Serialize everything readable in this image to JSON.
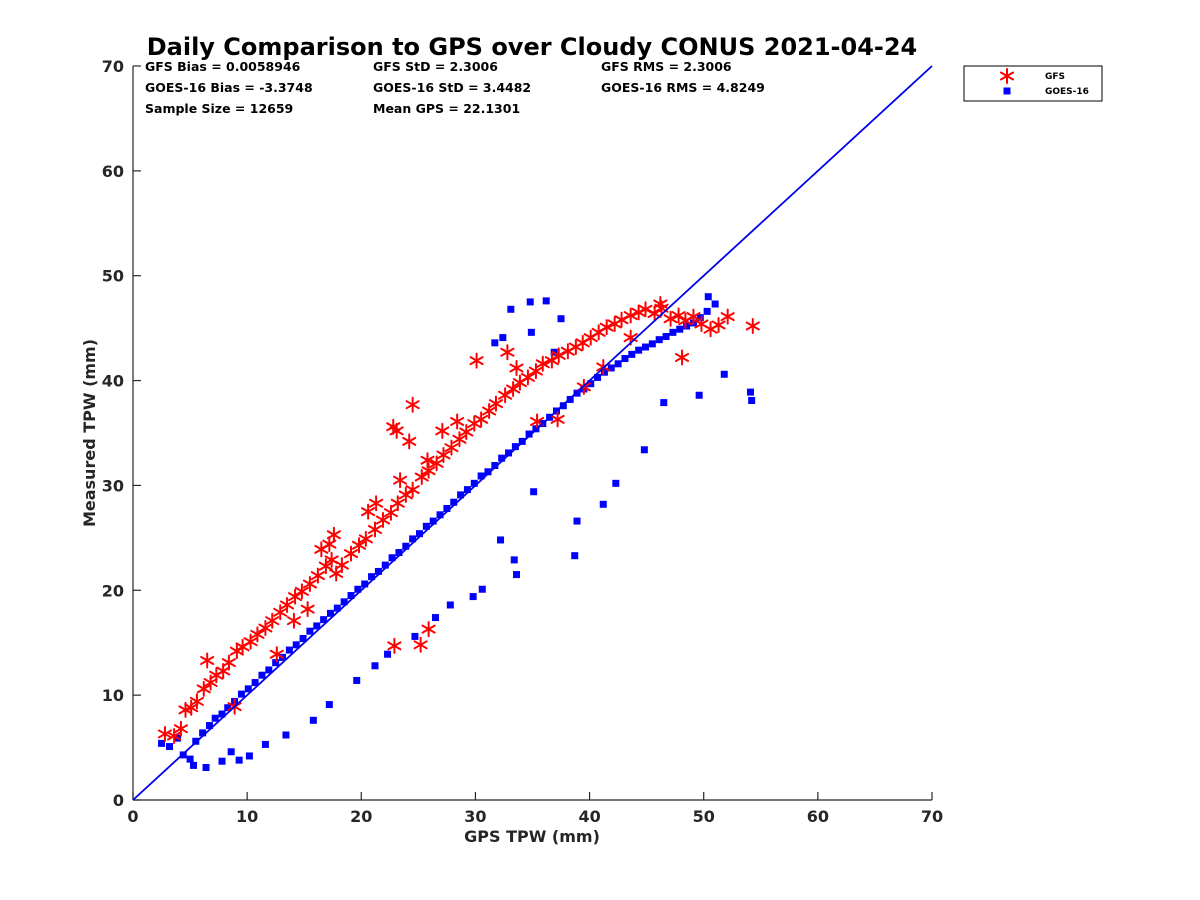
{
  "stats": {
    "gfs_bias": "GFS Bias = 0.0058946",
    "goes_bias": "GOES-16 Bias = -3.3748",
    "sample_size": "Sample Size = 12659",
    "gfs_std": "GFS StD = 2.3006",
    "goes_std": "GOES-16 StD = 3.4482",
    "mean_gps": "Mean GPS = 22.1301",
    "gfs_rms": "GFS RMS = 2.3006",
    "goes_rms": "GOES-16 RMS = 4.8249"
  },
  "chart_data": {
    "type": "scatter",
    "title": "Daily Comparison to GPS over Cloudy CONUS 2021-04-24",
    "xlabel": "GPS TPW (mm)",
    "ylabel": "Measured TPW (mm)",
    "xlim": [
      0,
      70
    ],
    "ylim": [
      0,
      70
    ],
    "xticks": [
      "0",
      "10",
      "20",
      "30",
      "40",
      "50",
      "60",
      "70"
    ],
    "yticks": [
      "0",
      "10",
      "20",
      "30",
      "40",
      "50",
      "60",
      "70"
    ],
    "grid": false,
    "legend": "outside-top-right",
    "reference_line": {
      "x": [
        0,
        70
      ],
      "y": [
        0,
        70
      ],
      "color": "#0000ee"
    },
    "series": [
      {
        "name": "GFS",
        "marker": "asterisk",
        "color": "#ff0000",
        "x": [
          2.8,
          3.6,
          4.2,
          4.6,
          5.1,
          5.6,
          6.2,
          6.8,
          7.3,
          7.9,
          8.4,
          9.1,
          9.6,
          10.3,
          10.9,
          11.6,
          12.2,
          12.9,
          13.5,
          14.2,
          14.8,
          15.5,
          16.2,
          16.9,
          17.4,
          17.8,
          18.3,
          19.1,
          19.8,
          20.4,
          21.2,
          21.9,
          22.6,
          23.2,
          23.9,
          24.5,
          25.3,
          25.9,
          26.6,
          27.2,
          27.9,
          28.6,
          29.2,
          29.9,
          30.5,
          31.2,
          31.8,
          32.6,
          33.3,
          33.9,
          34.6,
          35.3,
          35.9,
          36.7,
          37.3,
          38.1,
          38.8,
          39.4,
          40.1,
          40.8,
          41.5,
          42.2,
          42.8,
          43.6,
          44.3,
          44.9,
          45.7,
          46.3,
          47.1,
          47.8,
          48.4,
          49.1,
          49.8,
          50.6,
          51.3,
          52.1,
          54.3,
          17.6,
          25.2,
          25.9,
          23.1,
          24.2,
          24.5,
          22.8,
          30.1,
          32.8,
          33.6,
          35.4,
          37.2,
          39.5,
          41.2,
          43.6,
          46.2,
          48.1,
          20.6,
          21.3,
          23.4,
          25.8,
          27.1,
          28.4,
          16.5,
          17.2,
          6.5,
          8.9,
          12.6,
          14.1,
          15.3,
          22.9
        ],
        "y": [
          6.3,
          6.1,
          6.8,
          8.6,
          8.8,
          9.4,
          10.6,
          11.2,
          11.9,
          12.3,
          13.1,
          14.2,
          14.6,
          15.1,
          15.8,
          16.4,
          17.1,
          17.9,
          18.6,
          19.4,
          19.9,
          20.6,
          21.4,
          22.3,
          22.9,
          21.6,
          22.4,
          23.5,
          24.3,
          24.9,
          25.8,
          26.7,
          27.4,
          28.3,
          29.1,
          29.6,
          30.8,
          31.4,
          32.1,
          32.9,
          33.6,
          34.4,
          35.1,
          35.9,
          36.3,
          37.1,
          37.8,
          38.6,
          39.2,
          39.8,
          40.3,
          40.9,
          41.6,
          41.9,
          42.4,
          42.8,
          43.2,
          43.6,
          44.1,
          44.6,
          45.1,
          45.4,
          45.8,
          46.2,
          46.5,
          46.8,
          46.4,
          46.9,
          45.9,
          46.2,
          45.7,
          46.1,
          45.4,
          44.9,
          45.3,
          46.1,
          45.2,
          25.3,
          14.8,
          16.3,
          35.2,
          34.2,
          37.7,
          35.6,
          41.9,
          42.7,
          41.2,
          36.1,
          36.3,
          39.4,
          41.3,
          44.1,
          47.3,
          42.2,
          27.5,
          28.3,
          30.5,
          32.4,
          35.2,
          36.1,
          23.9,
          24.4,
          13.3,
          8.9,
          13.9,
          17.1,
          18.2,
          14.7
        ]
      },
      {
        "name": "GOES-16",
        "marker": "square",
        "color": "#0000ff",
        "x": [
          2.5,
          3.2,
          3.9,
          4.4,
          5.0,
          5.5,
          6.1,
          6.7,
          7.2,
          7.8,
          8.3,
          8.9,
          9.5,
          10.1,
          10.7,
          11.3,
          11.9,
          12.5,
          13.1,
          13.7,
          14.3,
          14.9,
          15.5,
          16.1,
          16.7,
          17.3,
          17.9,
          18.5,
          19.1,
          19.7,
          20.3,
          20.9,
          21.5,
          22.1,
          22.7,
          23.3,
          23.9,
          24.5,
          25.1,
          25.7,
          26.3,
          26.9,
          27.5,
          28.1,
          28.7,
          29.3,
          29.9,
          30.5,
          31.1,
          31.7,
          32.3,
          32.9,
          33.5,
          34.1,
          34.7,
          35.3,
          35.9,
          36.5,
          37.1,
          37.7,
          38.3,
          38.9,
          39.5,
          40.1,
          40.7,
          41.3,
          41.9,
          42.5,
          43.1,
          43.7,
          44.3,
          44.9,
          45.5,
          46.1,
          46.7,
          47.3,
          47.9,
          48.5,
          49.1,
          49.7,
          50.3,
          51.0,
          51.8,
          54.1,
          54.2,
          33.1,
          34.8,
          36.2,
          37.5,
          31.7,
          32.4,
          34.9,
          36.9,
          50.4,
          49.6,
          46.5,
          44.8,
          42.3,
          38.9,
          41.2,
          35.1,
          32.2,
          38.7,
          33.6,
          29.8,
          5.3,
          6.4,
          7.8,
          8.6,
          9.3,
          10.2,
          11.6,
          13.4,
          15.8,
          17.2,
          19.6,
          21.2,
          22.3,
          24.7,
          26.5,
          27.8,
          30.6,
          33.4
        ],
        "y": [
          5.4,
          5.1,
          5.9,
          4.3,
          3.9,
          5.6,
          6.4,
          7.1,
          7.8,
          8.2,
          8.8,
          9.4,
          10.1,
          10.6,
          11.2,
          11.9,
          12.4,
          13.1,
          13.6,
          14.3,
          14.8,
          15.4,
          16.1,
          16.6,
          17.2,
          17.8,
          18.3,
          18.9,
          19.5,
          20.1,
          20.6,
          21.3,
          21.8,
          22.4,
          23.1,
          23.6,
          24.2,
          24.9,
          25.4,
          26.1,
          26.6,
          27.2,
          27.8,
          28.4,
          29.1,
          29.6,
          30.2,
          30.9,
          31.3,
          31.9,
          32.6,
          33.1,
          33.7,
          34.2,
          34.9,
          35.4,
          35.9,
          36.5,
          37.1,
          37.6,
          38.2,
          38.8,
          39.2,
          39.7,
          40.3,
          40.8,
          41.2,
          41.6,
          42.1,
          42.5,
          42.9,
          43.2,
          43.5,
          43.9,
          44.2,
          44.6,
          44.9,
          45.2,
          45.5,
          46.0,
          46.6,
          47.3,
          40.6,
          38.9,
          38.1,
          46.8,
          47.5,
          47.6,
          45.9,
          43.6,
          44.1,
          44.6,
          42.7,
          48.0,
          38.6,
          37.9,
          33.4,
          30.2,
          26.6,
          28.2,
          29.4,
          24.8,
          23.3,
          21.5,
          19.4,
          3.3,
          3.1,
          3.7,
          4.6,
          3.8,
          4.2,
          5.3,
          6.2,
          7.6,
          9.1,
          11.4,
          12.8,
          13.9,
          15.6,
          17.4,
          18.6,
          20.1,
          22.9
        ]
      }
    ]
  }
}
